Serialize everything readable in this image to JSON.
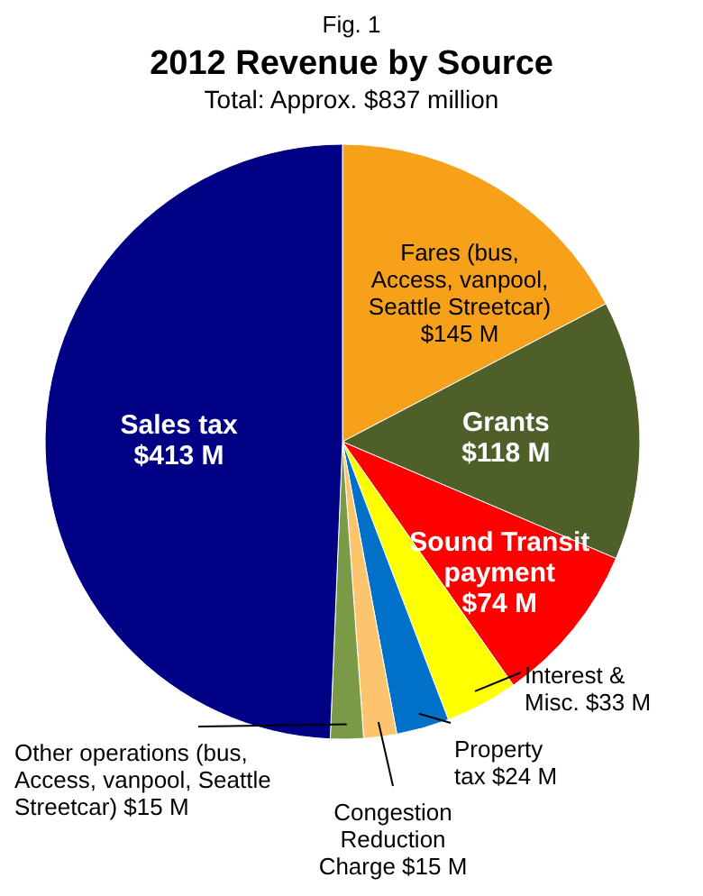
{
  "chart_data": {
    "type": "pie",
    "title": "2012 Revenue by Source",
    "subtitle": "Total: Approx. $837 million",
    "annotations": [
      "Fig. 1"
    ],
    "categories": [
      "Fares (bus, Access, vanpool, Seattle Streetcar)",
      "Grants",
      "Sound Transit payment",
      "Interest & Misc.",
      "Property tax",
      "Congestion Reduction Charge",
      "Other operations (bus, Access, vanpool, Seattle Streetcar)",
      "Sales tax"
    ],
    "values": [
      145,
      118,
      74,
      33,
      24,
      15,
      15,
      413
    ],
    "value_labels": [
      "$145 M",
      "$118 M",
      "$74 M",
      "$33 M",
      "$24 M",
      "$15 M",
      "$15 M",
      "$413 M"
    ],
    "colors": [
      "#f7a11a",
      "#4f5f2a",
      "#ff0000",
      "#ffff00",
      "#0070c8",
      "#fcc46c",
      "#7b9a48",
      "#000085"
    ]
  }
}
